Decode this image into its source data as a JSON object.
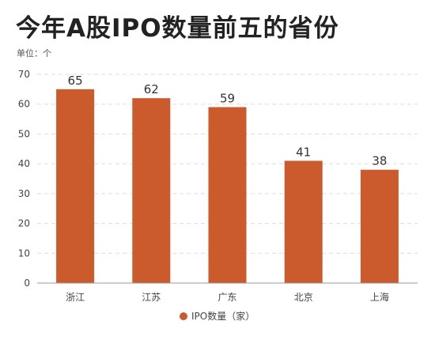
{
  "title": "今年A股IPO数量前五的省份",
  "unit_label": "单位：个",
  "colors": {
    "bar": "#CB5A2C",
    "grid": "#dddddd",
    "axis": "#999999"
  },
  "chart_data": {
    "type": "bar",
    "title": "今年A股IPO数量前五的省份",
    "categories": [
      "浙江",
      "江苏",
      "广东",
      "北京",
      "上海"
    ],
    "series": [
      {
        "name": "IPO数量（家）",
        "values": [
          65,
          62,
          59,
          41,
          38
        ]
      }
    ],
    "value_labels": [
      "65",
      "62",
      "59",
      "41",
      "38"
    ],
    "ylim": [
      0,
      70
    ],
    "yticks": [
      "0",
      "10",
      "20",
      "30",
      "40",
      "50",
      "60",
      "70"
    ],
    "grid": true,
    "grid_style": "dashed",
    "legend_position": "bottom-center"
  }
}
